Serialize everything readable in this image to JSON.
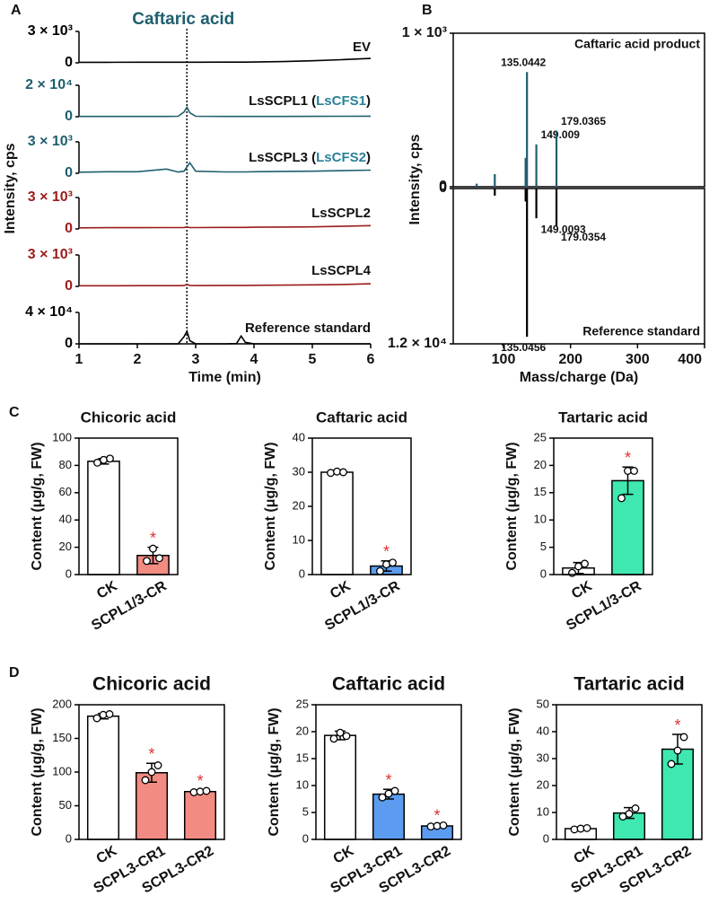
{
  "chart_data": [
    {
      "type": "line",
      "panel": "A",
      "title": "Caftaric acid",
      "xlabel": "Time (min)",
      "ylabel": "Intensity, cps",
      "xlim": [
        1,
        6
      ],
      "xticks": [
        1,
        2,
        3,
        4,
        5,
        6
      ],
      "reference_x": 2.85,
      "x": [
        1,
        1.5,
        2,
        2.5,
        2.7,
        2.8,
        2.85,
        2.9,
        3.0,
        3.5,
        3.7,
        3.78,
        3.85,
        4,
        4.5,
        5,
        5.5,
        6
      ],
      "series": [
        {
          "name": "EV",
          "color": "#000000",
          "ylim": [
            0,
            3000
          ],
          "yticks": [
            0,
            {
              "value": 3000,
              "label": "3 × 10³"
            }
          ],
          "values": [
            50,
            50,
            60,
            60,
            60,
            60,
            60,
            60,
            60,
            70,
            70,
            70,
            70,
            80,
            120,
            200,
            300,
            420
          ]
        },
        {
          "name": "LsSCPL1 (LsCFS1)",
          "highlight": "LsCFS1",
          "highlight_color": "#2a8196",
          "color": "#1f5f6e",
          "ylim": [
            0,
            20000
          ],
          "yticks": [
            0,
            {
              "value": 20000,
              "label": "2 × 10⁴"
            }
          ],
          "values": [
            200,
            200,
            200,
            200,
            300,
            3000,
            6000,
            2500,
            300,
            200,
            200,
            200,
            200,
            200,
            200,
            250,
            300,
            350
          ]
        },
        {
          "name": "LsSCPL3 (LsCFS2)",
          "highlight": "LsCFS2",
          "highlight_color": "#2a8196",
          "color": "#1f5f6e",
          "ylim": [
            0,
            3000
          ],
          "yticks": [
            0,
            {
              "value": 3000,
              "label": "3 × 10³"
            }
          ],
          "values": [
            100,
            150,
            150,
            400,
            120,
            200,
            600,
            1000,
            200,
            130,
            130,
            130,
            130,
            150,
            180,
            200,
            250,
            300
          ]
        },
        {
          "name": "LsSCPL2",
          "color": "#9b1c1c",
          "ylim": [
            0,
            3000
          ],
          "yticks": [
            0,
            {
              "value": 3000,
              "label": "3 × 10³"
            }
          ],
          "values": [
            100,
            120,
            120,
            130,
            130,
            140,
            180,
            140,
            130,
            150,
            150,
            150,
            150,
            160,
            180,
            200,
            250,
            320
          ]
        },
        {
          "name": "LsSCPL4",
          "color": "#9b1c1c",
          "ylim": [
            0,
            3000
          ],
          "yticks": [
            0,
            {
              "value": 3000,
              "label": "3 × 10³"
            }
          ],
          "values": [
            60,
            60,
            70,
            70,
            70,
            80,
            200,
            90,
            80,
            90,
            90,
            90,
            90,
            100,
            120,
            150,
            180,
            250
          ]
        },
        {
          "name": "Reference standard",
          "color": "#000000",
          "ylim": [
            0,
            40000
          ],
          "yticks": [
            0,
            {
              "value": 40000,
              "label": "4 × 10⁴"
            }
          ],
          "values": [
            0,
            0,
            0,
            0,
            0,
            9000,
            16000,
            4000,
            0,
            0,
            300,
            10000,
            2000,
            0,
            0,
            0,
            0,
            0
          ]
        }
      ]
    },
    {
      "type": "stem",
      "panel": "B",
      "xlabel": "Mass/charge (Da)",
      "ylabel": "Intensity, cps",
      "xlim": [
        25,
        400
      ],
      "xticks": [
        100,
        200,
        300,
        400
      ],
      "series": [
        {
          "name": "Caftaric acid product",
          "color": "#1f5f6e",
          "ylim": [
            0,
            1000
          ],
          "yticks": [
            0,
            {
              "value": 1000,
              "label": "1 × 10³"
            }
          ],
          "x": [
            60,
            87,
            133,
            135.0442,
            149.009,
            179.0365
          ],
          "values": [
            20,
            82,
            188,
            747,
            276,
            365
          ],
          "labeled": [
            false,
            false,
            false,
            true,
            true,
            true
          ]
        },
        {
          "name": "Reference standard",
          "color": "#000000",
          "inverted": true,
          "ylim": [
            0,
            12000
          ],
          "yticks": [
            0,
            {
              "value": 12000,
              "label": "1.2 × 10⁴"
            }
          ],
          "x": [
            87,
            133,
            135.0456,
            149.0093,
            179.0354
          ],
          "values": [
            550,
            1000,
            11450,
            2300,
            2900
          ],
          "labeled": [
            false,
            false,
            true,
            true,
            true
          ]
        }
      ]
    },
    {
      "type": "bar",
      "panel": "C",
      "title": "Chicoric acid",
      "ylabel": "Content (μg/g, FW)",
      "categories": [
        "CK",
        "SCPL1/3-CR"
      ],
      "values": [
        83,
        14
      ],
      "errors": [
        2,
        6
      ],
      "points": [
        [
          82,
          84,
          85
        ],
        [
          10,
          19,
          12
        ]
      ],
      "colors": [
        "#ffffff",
        "#f28b82"
      ],
      "annotations": [
        null,
        "*"
      ],
      "annotation_color": "#e03030",
      "ylim": [
        0,
        100
      ],
      "yticks": [
        0,
        20,
        40,
        60,
        80,
        100
      ]
    },
    {
      "type": "bar",
      "title": "Caftaric acid",
      "ylabel": "Content (μg/g, FW)",
      "categories": [
        "CK",
        "SCPL1/3-CR"
      ],
      "values": [
        30,
        2.5
      ],
      "errors": [
        0.4,
        1.5
      ],
      "points": [
        [
          29.8,
          30.2,
          30
        ],
        [
          1,
          3,
          3.5
        ]
      ],
      "colors": [
        "#ffffff",
        "#5b9cf0"
      ],
      "annotations": [
        null,
        "*"
      ],
      "annotation_color": "#e03030",
      "ylim": [
        0,
        40
      ],
      "yticks": [
        0,
        10,
        20,
        30,
        40
      ]
    },
    {
      "type": "bar",
      "title": "Tartaric acid",
      "ylabel": "Content (μg/g, FW)",
      "categories": [
        "CK",
        "SCPL1/3-CR"
      ],
      "values": [
        1.2,
        17.2
      ],
      "errors": [
        1,
        2.5
      ],
      "points": [
        [
          0.3,
          1.5,
          2
        ],
        [
          14,
          19,
          19
        ]
      ],
      "colors": [
        "#ffffff",
        "#3ee8b0"
      ],
      "annotations": [
        null,
        "*"
      ],
      "annotation_color": "#e03030",
      "ylim": [
        0,
        25
      ],
      "yticks": [
        0,
        5,
        10,
        15,
        20,
        25
      ]
    },
    {
      "type": "bar",
      "panel": "D",
      "title": "Chicoric acid",
      "ylabel": "Content (μg/g, FW)",
      "categories": [
        "CK",
        "SCPL3-CR1",
        "SCPL3-CR2"
      ],
      "values": [
        183,
        99,
        71
      ],
      "errors": [
        4,
        14,
        2
      ],
      "points": [
        [
          180,
          185,
          186
        ],
        [
          88,
          100,
          110
        ],
        [
          70,
          71,
          72
        ]
      ],
      "colors": [
        "#ffffff",
        "#f28b82",
        "#f28b82"
      ],
      "annotations": [
        null,
        "*",
        "*"
      ],
      "annotation_color": "#e03030",
      "ylim": [
        0,
        200
      ],
      "yticks": [
        0,
        50,
        100,
        150,
        200
      ]
    },
    {
      "type": "bar",
      "title": "Caftaric acid",
      "ylabel": "Content (μg/g, FW)",
      "categories": [
        "CK",
        "SCPL3-CR1",
        "SCPL3-CR2"
      ],
      "values": [
        19.3,
        8.4,
        2.5
      ],
      "errors": [
        0.8,
        0.9,
        0.2
      ],
      "points": [
        [
          18.7,
          19.8,
          19.2
        ],
        [
          7.8,
          8.5,
          9
        ],
        [
          2.4,
          2.5,
          2.6
        ]
      ],
      "colors": [
        "#ffffff",
        "#5b9cf0",
        "#5b9cf0"
      ],
      "annotations": [
        null,
        "*",
        "*"
      ],
      "annotation_color": "#e03030",
      "ylim": [
        0,
        25
      ],
      "yticks": [
        0,
        5,
        10,
        15,
        20,
        25
      ]
    },
    {
      "type": "bar",
      "title": "Tartaric acid",
      "ylabel": "Content (μg/g, FW)",
      "categories": [
        "CK",
        "SCPL3-CR1",
        "SCPL3-CR2"
      ],
      "values": [
        4,
        9.8,
        33.5
      ],
      "errors": [
        0.6,
        2,
        5.5
      ],
      "points": [
        [
          3.7,
          4,
          4.2
        ],
        [
          8.5,
          9.5,
          11.5
        ],
        [
          28,
          33,
          38
        ]
      ],
      "colors": [
        "#ffffff",
        "#3ee8b0",
        "#3ee8b0"
      ],
      "annotations": [
        null,
        null,
        "*"
      ],
      "annotation_color": "#e03030",
      "ylim": [
        0,
        50
      ],
      "yticks": [
        0,
        10,
        20,
        30,
        40,
        50
      ]
    }
  ]
}
